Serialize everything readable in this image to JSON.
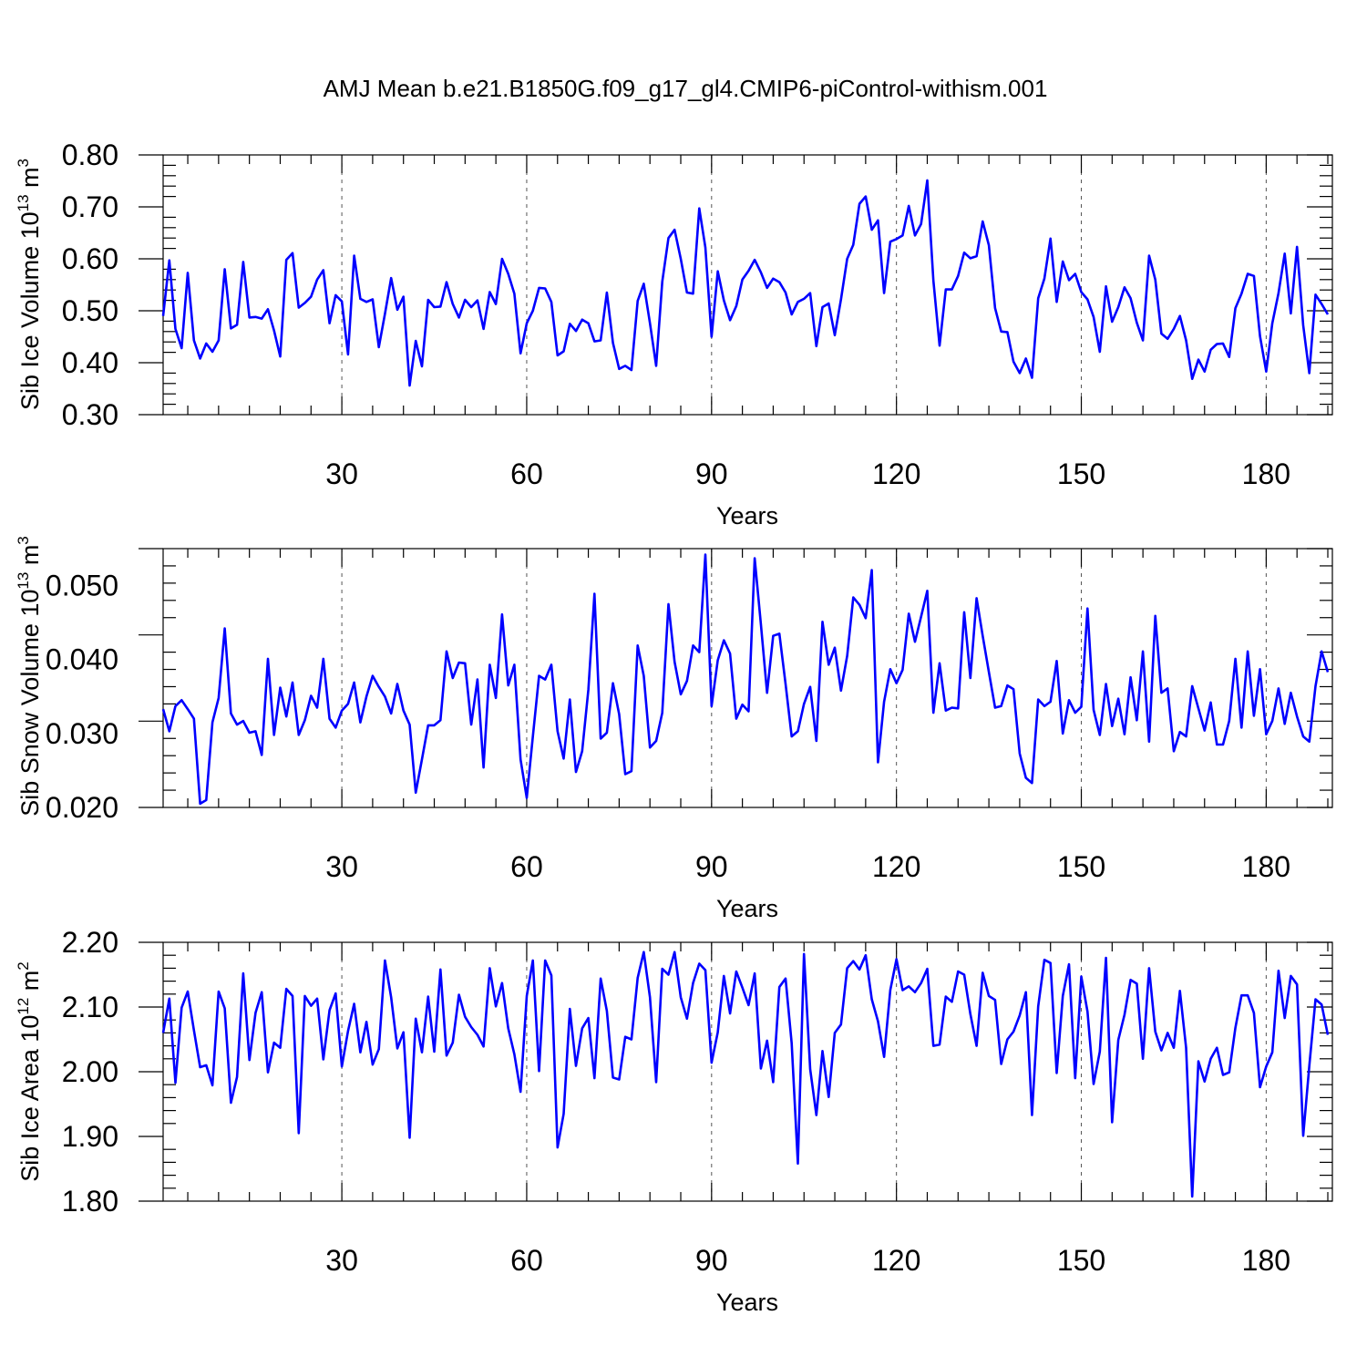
{
  "figure_title": "AMJ Mean b.e21.B1850G.f09_g17_gl4.CMIP6-piControl-withism.001",
  "colors": {
    "series": "#0000ff",
    "grid": "#555555",
    "axis": "#000000"
  },
  "chart_data": [
    {
      "type": "line",
      "name": "ice-volume",
      "xlabel": "Years",
      "ylabel_main": "Sib Ice Volume 10",
      "ylabel_exp1": "13",
      "ylabel_unit": " m",
      "ylabel_exp2": "3",
      "xlim": [
        1,
        190
      ],
      "ylim": [
        0.3,
        0.8
      ],
      "xticks": [
        30,
        60,
        90,
        120,
        150,
        180
      ],
      "xtick_labels": [
        "30",
        "60",
        "90",
        "120",
        "150",
        "180"
      ],
      "yticks": [
        0.3,
        0.4,
        0.5,
        0.6,
        0.7,
        0.8
      ],
      "ytick_labels": [
        "0.30",
        "0.40",
        "0.50",
        "0.60",
        "0.70",
        "0.80"
      ],
      "x_start": 1,
      "values": [
        0.49,
        0.597,
        0.465,
        0.428,
        0.573,
        0.443,
        0.408,
        0.437,
        0.421,
        0.443,
        0.58,
        0.466,
        0.473,
        0.594,
        0.487,
        0.488,
        0.485,
        0.503,
        0.462,
        0.412,
        0.598,
        0.611,
        0.506,
        0.515,
        0.527,
        0.56,
        0.578,
        0.476,
        0.53,
        0.518,
        0.416,
        0.606,
        0.523,
        0.517,
        0.522,
        0.43,
        0.494,
        0.563,
        0.502,
        0.527,
        0.356,
        0.442,
        0.393,
        0.521,
        0.507,
        0.508,
        0.555,
        0.513,
        0.487,
        0.521,
        0.507,
        0.52,
        0.465,
        0.536,
        0.513,
        0.6,
        0.571,
        0.533,
        0.418,
        0.476,
        0.5,
        0.544,
        0.543,
        0.517,
        0.414,
        0.422,
        0.475,
        0.461,
        0.483,
        0.476,
        0.441,
        0.443,
        0.535,
        0.438,
        0.388,
        0.394,
        0.386,
        0.519,
        0.552,
        0.476,
        0.394,
        0.556,
        0.64,
        0.656,
        0.6,
        0.535,
        0.533,
        0.697,
        0.622,
        0.45,
        0.576,
        0.52,
        0.482,
        0.509,
        0.56,
        0.577,
        0.598,
        0.574,
        0.544,
        0.562,
        0.555,
        0.535,
        0.493,
        0.517,
        0.523,
        0.534,
        0.432,
        0.507,
        0.514,
        0.453,
        0.522,
        0.6,
        0.627,
        0.706,
        0.72,
        0.656,
        0.674,
        0.534,
        0.633,
        0.638,
        0.645,
        0.702,
        0.645,
        0.667,
        0.751,
        0.558,
        0.433,
        0.541,
        0.541,
        0.567,
        0.612,
        0.601,
        0.605,
        0.672,
        0.626,
        0.505,
        0.46,
        0.459,
        0.402,
        0.38,
        0.408,
        0.371,
        0.524,
        0.562,
        0.639,
        0.517,
        0.595,
        0.559,
        0.571,
        0.536,
        0.522,
        0.488,
        0.421,
        0.547,
        0.479,
        0.507,
        0.545,
        0.524,
        0.477,
        0.443,
        0.606,
        0.56,
        0.456,
        0.446,
        0.465,
        0.49,
        0.443,
        0.369,
        0.406,
        0.383,
        0.425,
        0.436,
        0.437,
        0.411,
        0.505,
        0.533,
        0.571,
        0.567,
        0.451,
        0.383,
        0.476,
        0.534,
        0.61,
        0.495,
        0.623,
        0.472,
        0.38,
        0.531,
        0.513,
        0.493
      ]
    },
    {
      "type": "line",
      "name": "snow-volume",
      "xlabel": "Years",
      "ylabel_main": "Sib Snow Volume 10",
      "ylabel_exp1": "13",
      "ylabel_unit": " m",
      "ylabel_exp2": "3",
      "xlim": [
        1,
        190
      ],
      "ylim": [
        0.02,
        0.055
      ],
      "xticks": [
        30,
        60,
        90,
        120,
        150,
        180
      ],
      "xtick_labels": [
        "30",
        "60",
        "90",
        "120",
        "150",
        "180"
      ],
      "yticks": [
        0.02,
        0.03,
        0.04,
        0.05
      ],
      "ytick_labels": [
        "0.020",
        "0.030",
        "0.040",
        "0.050"
      ],
      "x_start": 1,
      "values": [
        0.0333,
        0.0303,
        0.0337,
        0.0345,
        0.0333,
        0.032,
        0.0205,
        0.021,
        0.0315,
        0.0348,
        0.0442,
        0.0327,
        0.0312,
        0.0317,
        0.0301,
        0.0303,
        0.0271,
        0.0401,
        0.0298,
        0.0362,
        0.0323,
        0.0369,
        0.0298,
        0.0318,
        0.0351,
        0.0335,
        0.0401,
        0.032,
        0.0308,
        0.0331,
        0.034,
        0.0369,
        0.0315,
        0.035,
        0.0378,
        0.0363,
        0.035,
        0.0327,
        0.0367,
        0.0331,
        0.0312,
        0.022,
        0.0265,
        0.0311,
        0.0311,
        0.0318,
        0.0411,
        0.0375,
        0.0396,
        0.0395,
        0.0312,
        0.0373,
        0.0254,
        0.0393,
        0.0348,
        0.0461,
        0.0365,
        0.0393,
        0.0265,
        0.0213,
        0.0296,
        0.0378,
        0.0373,
        0.0393,
        0.0303,
        0.0266,
        0.0346,
        0.0248,
        0.0276,
        0.0359,
        0.0489,
        0.0293,
        0.0301,
        0.0368,
        0.0326,
        0.0245,
        0.0249,
        0.0419,
        0.0378,
        0.0281,
        0.029,
        0.0328,
        0.0475,
        0.0397,
        0.0353,
        0.0371,
        0.0419,
        0.041,
        0.0542,
        0.0337,
        0.0399,
        0.0426,
        0.0408,
        0.032,
        0.0339,
        0.033,
        0.0537,
        0.0448,
        0.0355,
        0.0432,
        0.0435,
        0.0367,
        0.0296,
        0.0303,
        0.034,
        0.0363,
        0.029,
        0.0451,
        0.0393,
        0.0416,
        0.0358,
        0.0405,
        0.0484,
        0.0474,
        0.0456,
        0.0521,
        0.0261,
        0.0343,
        0.0387,
        0.0368,
        0.0386,
        0.0462,
        0.0424,
        0.0458,
        0.0493,
        0.0328,
        0.0395,
        0.0331,
        0.0335,
        0.0334,
        0.0464,
        0.0375,
        0.0483,
        0.0432,
        0.0383,
        0.0335,
        0.0337,
        0.0365,
        0.036,
        0.0273,
        0.024,
        0.0233,
        0.0346,
        0.0337,
        0.0343,
        0.0398,
        0.03,
        0.0345,
        0.0328,
        0.0336,
        0.0469,
        0.0332,
        0.0298,
        0.0367,
        0.031,
        0.0347,
        0.0299,
        0.0376,
        0.0318,
        0.0411,
        0.0289,
        0.0459,
        0.0355,
        0.0361,
        0.0276,
        0.0302,
        0.0296,
        0.0364,
        0.0334,
        0.0304,
        0.0342,
        0.0285,
        0.0285,
        0.0317,
        0.0401,
        0.0308,
        0.0411,
        0.0324,
        0.0387,
        0.0299,
        0.0317,
        0.0361,
        0.0313,
        0.0355,
        0.0323,
        0.0296,
        0.0289,
        0.0364,
        0.0411,
        0.0383
      ]
    },
    {
      "type": "line",
      "name": "ice-area",
      "xlabel": "Years",
      "ylabel_main": "Sib Ice Area 10",
      "ylabel_exp1": "12",
      "ylabel_unit": " m",
      "ylabel_exp2": "2",
      "xlim": [
        1,
        190
      ],
      "ylim": [
        1.8,
        2.2
      ],
      "xticks": [
        30,
        60,
        90,
        120,
        150,
        180
      ],
      "xtick_labels": [
        "30",
        "60",
        "90",
        "120",
        "150",
        "180"
      ],
      "yticks": [
        1.8,
        1.9,
        2.0,
        2.1,
        2.2
      ],
      "ytick_labels": [
        "1.80",
        "1.90",
        "2.00",
        "2.10",
        "2.20"
      ],
      "x_start": 1,
      "values": [
        2.06,
        2.113,
        1.983,
        2.099,
        2.124,
        2.064,
        2.007,
        2.01,
        1.979,
        2.124,
        2.098,
        1.952,
        1.992,
        2.152,
        2.018,
        2.091,
        2.123,
        1.999,
        2.045,
        2.037,
        2.128,
        2.117,
        1.905,
        2.117,
        2.102,
        2.113,
        2.019,
        2.095,
        2.121,
        2.008,
        2.063,
        2.105,
        2.03,
        2.077,
        2.011,
        2.035,
        2.172,
        2.115,
        2.036,
        2.061,
        1.898,
        2.082,
        2.03,
        2.116,
        2.031,
        2.158,
        2.025,
        2.045,
        2.119,
        2.085,
        2.069,
        2.057,
        2.039,
        2.16,
        2.101,
        2.137,
        2.067,
        2.027,
        1.969,
        2.117,
        2.172,
        2.001,
        2.172,
        2.149,
        1.883,
        1.935,
        2.097,
        2.009,
        2.067,
        2.083,
        1.99,
        2.144,
        2.094,
        1.991,
        1.988,
        2.054,
        2.05,
        2.145,
        2.185,
        2.115,
        1.984,
        2.159,
        2.15,
        2.185,
        2.115,
        2.082,
        2.137,
        2.167,
        2.157,
        2.014,
        2.061,
        2.148,
        2.09,
        2.155,
        2.13,
        2.103,
        2.152,
        2.005,
        2.048,
        1.984,
        2.131,
        2.144,
        2.044,
        1.858,
        2.182,
        2.004,
        1.933,
        2.032,
        1.961,
        2.06,
        2.073,
        2.16,
        2.171,
        2.158,
        2.18,
        2.112,
        2.078,
        2.023,
        2.126,
        2.174,
        2.126,
        2.132,
        2.123,
        2.137,
        2.159,
        2.04,
        2.042,
        2.116,
        2.108,
        2.155,
        2.15,
        2.089,
        2.04,
        2.153,
        2.117,
        2.111,
        2.012,
        2.05,
        2.062,
        2.087,
        2.123,
        1.933,
        2.101,
        2.173,
        2.168,
        1.998,
        2.117,
        2.166,
        1.99,
        2.147,
        2.093,
        1.981,
        2.031,
        2.176,
        1.922,
        2.049,
        2.088,
        2.142,
        2.136,
        2.02,
        2.16,
        2.062,
        2.033,
        2.06,
        2.037,
        2.125,
        2.037,
        1.807,
        2.016,
        1.985,
        2.02,
        2.037,
        1.995,
        1.999,
        2.068,
        2.118,
        2.118,
        2.091,
        1.976,
        2.008,
        2.03,
        2.156,
        2.083,
        2.148,
        2.135,
        1.901,
        2.009,
        2.112,
        2.104,
        2.057
      ]
    }
  ]
}
